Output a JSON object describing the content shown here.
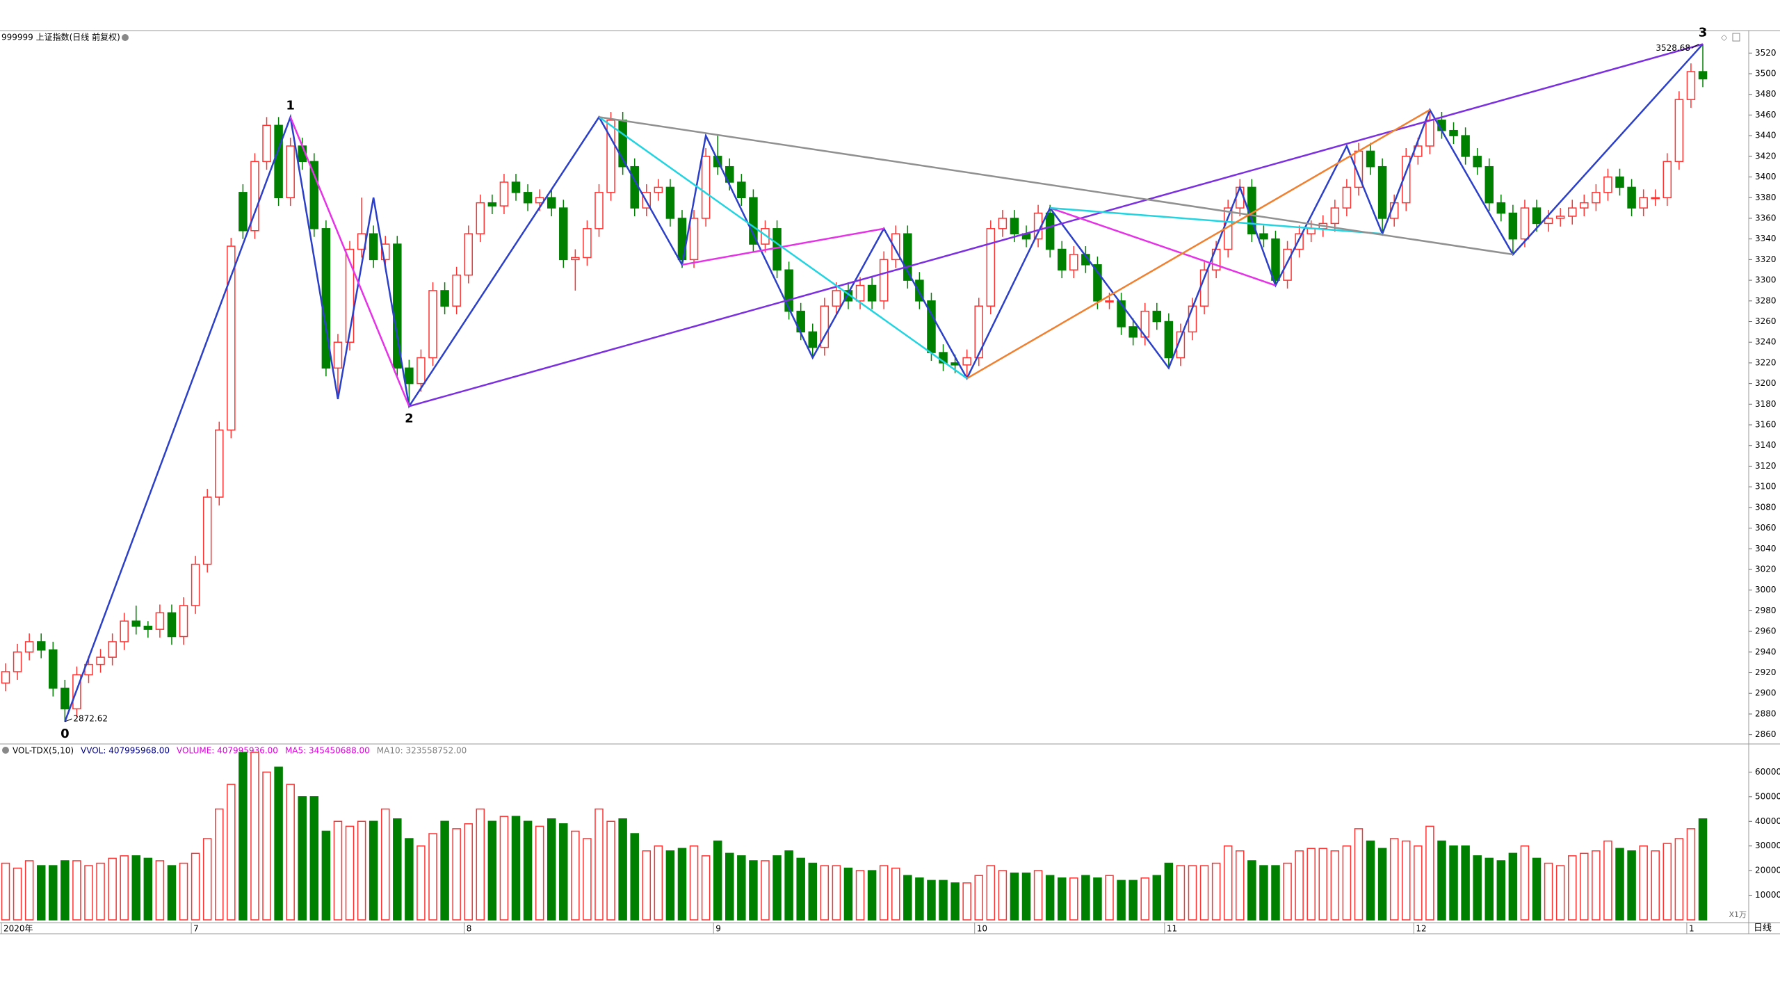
{
  "chart_data": {
    "type": "candlestick",
    "title": "999999 上证指数(日线 前复权)",
    "categories": [
      "2020年",
      null,
      null,
      null,
      null,
      null,
      null,
      null,
      null,
      null,
      null,
      null,
      null,
      null,
      null,
      null,
      "7",
      null,
      null,
      null,
      null,
      null,
      null,
      null,
      null,
      null,
      null,
      null,
      null,
      null,
      null,
      null,
      null,
      null,
      null,
      null,
      null,
      null,
      null,
      "8",
      null,
      null,
      null,
      null,
      null,
      null,
      null,
      null,
      null,
      null,
      null,
      null,
      null,
      null,
      null,
      null,
      null,
      null,
      null,
      null,
      "9",
      null,
      null,
      null,
      null,
      null,
      null,
      null,
      null,
      null,
      null,
      null,
      null,
      null,
      null,
      null,
      null,
      null,
      null,
      null,
      null,
      null,
      "10",
      null,
      null,
      null,
      null,
      null,
      null,
      null,
      null,
      null,
      null,
      null,
      null,
      null,
      null,
      null,
      "11",
      null,
      null,
      null,
      null,
      null,
      null,
      null,
      null,
      null,
      null,
      null,
      null,
      null,
      null,
      null,
      null,
      null,
      null,
      null,
      null,
      "12",
      null,
      null,
      null,
      null,
      null,
      null,
      null,
      null,
      null,
      null,
      null,
      null,
      null,
      null,
      null,
      null,
      null,
      null,
      null,
      null,
      null,
      null,
      "1",
      null
    ],
    "open": [
      2910,
      2921,
      2940,
      2950,
      2942,
      2905,
      2885,
      2918,
      2928,
      2935,
      2950,
      2970,
      2965,
      2962,
      2978,
      2955,
      2985,
      3025,
      3090,
      3155,
      3385,
      3348,
      3415,
      3450,
      3380,
      3430,
      3415,
      3350,
      3215,
      3240,
      3330,
      3345,
      3320,
      3335,
      3215,
      3200,
      3225,
      3290,
      3275,
      3305,
      3345,
      3375,
      3372,
      3395,
      3385,
      3375,
      3380,
      3370,
      3320,
      3322,
      3350,
      3385,
      3455,
      3410,
      3370,
      3385,
      3390,
      3360,
      3320,
      3360,
      3420,
      3410,
      3395,
      3380,
      3335,
      3350,
      3310,
      3270,
      3250,
      3235,
      3275,
      3290,
      3280,
      3295,
      3280,
      3320,
      3345,
      3300,
      3280,
      3230,
      3220,
      3218,
      3225,
      3275,
      3350,
      3360,
      3345,
      3340,
      3365,
      3330,
      3310,
      3325,
      3315,
      3280,
      3280,
      3255,
      3245,
      3270,
      3260,
      3225,
      3250,
      3275,
      3310,
      3330,
      3370,
      3390,
      3345,
      3340,
      3300,
      3330,
      3345,
      3350,
      3355,
      3370,
      3390,
      3425,
      3410,
      3360,
      3375,
      3420,
      3430,
      3455,
      3445,
      3440,
      3420,
      3410,
      3375,
      3365,
      3340,
      3370,
      3355,
      3360,
      3362,
      3370,
      3375,
      3385,
      3400,
      3390,
      3370,
      3380,
      3380,
      3415,
      3475,
      3502
    ],
    "high": [
      2929,
      2948,
      2958,
      2958,
      2950,
      2913,
      2926,
      2936,
      2943,
      2958,
      2978,
      2985,
      2970,
      2986,
      2986,
      2993,
      3033,
      3098,
      3163,
      3341,
      3393,
      3423,
      3458,
      3458,
      3438,
      3438,
      3423,
      3358,
      3248,
      3338,
      3380,
      3353,
      3343,
      3343,
      3223,
      3233,
      3298,
      3298,
      3313,
      3353,
      3383,
      3383,
      3403,
      3403,
      3393,
      3388,
      3388,
      3378,
      3330,
      3358,
      3393,
      3463,
      3463,
      3418,
      3393,
      3398,
      3398,
      3368,
      3368,
      3428,
      3440,
      3418,
      3403,
      3388,
      3358,
      3358,
      3318,
      3278,
      3258,
      3283,
      3298,
      3298,
      3303,
      3303,
      3328,
      3353,
      3353,
      3308,
      3288,
      3238,
      3228,
      3233,
      3283,
      3358,
      3368,
      3368,
      3353,
      3373,
      3373,
      3338,
      3333,
      3333,
      3323,
      3288,
      3288,
      3263,
      3278,
      3278,
      3268,
      3258,
      3283,
      3318,
      3338,
      3378,
      3398,
      3398,
      3353,
      3348,
      3338,
      3353,
      3358,
      3363,
      3378,
      3398,
      3433,
      3433,
      3418,
      3383,
      3428,
      3438,
      3465,
      3463,
      3453,
      3448,
      3428,
      3418,
      3383,
      3373,
      3378,
      3378,
      3368,
      3370,
      3378,
      3383,
      3393,
      3408,
      3408,
      3398,
      3388,
      3388,
      3423,
      3483,
      3510,
      3528.68
    ],
    "low": [
      2902,
      2913,
      2932,
      2934,
      2897,
      2872.62,
      2877,
      2910,
      2920,
      2927,
      2942,
      2957,
      2954,
      2954,
      2947,
      2947,
      2977,
      3017,
      3082,
      3147,
      3340,
      3340,
      3407,
      3372,
      3372,
      3407,
      3342,
      3207,
      3185,
      3232,
      3322,
      3312,
      3312,
      3207,
      3178,
      3192,
      3217,
      3267,
      3267,
      3297,
      3337,
      3364,
      3364,
      3377,
      3367,
      3367,
      3362,
      3312,
      3290,
      3314,
      3342,
      3377,
      3402,
      3362,
      3362,
      3377,
      3352,
      3312,
      3312,
      3352,
      3402,
      3387,
      3372,
      3327,
      3327,
      3302,
      3262,
      3242,
      3225,
      3227,
      3267,
      3272,
      3272,
      3272,
      3272,
      3312,
      3292,
      3272,
      3222,
      3212,
      3210,
      3205,
      3217,
      3267,
      3342,
      3337,
      3332,
      3332,
      3322,
      3302,
      3302,
      3307,
      3272,
      3272,
      3247,
      3237,
      3237,
      3252,
      3215,
      3217,
      3242,
      3267,
      3302,
      3322,
      3362,
      3337,
      3332,
      3295,
      3292,
      3322,
      3337,
      3342,
      3347,
      3362,
      3382,
      3402,
      3345,
      3352,
      3367,
      3412,
      3422,
      3437,
      3432,
      3412,
      3402,
      3367,
      3357,
      3325,
      3332,
      3347,
      3347,
      3352,
      3354,
      3362,
      3367,
      3377,
      3382,
      3362,
      3362,
      3372,
      3372,
      3407,
      3467,
      3487
    ],
    "close": [
      2921,
      2940,
      2950,
      2942,
      2905,
      2885,
      2918,
      2928,
      2935,
      2950,
      2970,
      2965,
      2962,
      2978,
      2955,
      2985,
      3025,
      3090,
      3155,
      3333,
      3348,
      3415,
      3450,
      3380,
      3430,
      3415,
      3350,
      3215,
      3240,
      3330,
      3345,
      3320,
      3335,
      3215,
      3200,
      3225,
      3290,
      3275,
      3305,
      3345,
      3375,
      3372,
      3395,
      3385,
      3375,
      3380,
      3370,
      3320,
      3322,
      3350,
      3385,
      3455,
      3410,
      3370,
      3385,
      3390,
      3360,
      3320,
      3360,
      3420,
      3410,
      3395,
      3380,
      3335,
      3350,
      3310,
      3270,
      3250,
      3235,
      3275,
      3290,
      3280,
      3295,
      3280,
      3320,
      3345,
      3300,
      3280,
      3230,
      3220,
      3218,
      3225,
      3275,
      3350,
      3360,
      3345,
      3340,
      3365,
      3330,
      3310,
      3325,
      3315,
      3280,
      3280,
      3255,
      3245,
      3270,
      3260,
      3225,
      3250,
      3275,
      3310,
      3330,
      3370,
      3390,
      3345,
      3340,
      3300,
      3330,
      3345,
      3350,
      3355,
      3370,
      3390,
      3425,
      3410,
      3360,
      3375,
      3420,
      3430,
      3455,
      3445,
      3440,
      3420,
      3410,
      3375,
      3365,
      3340,
      3370,
      3355,
      3360,
      3362,
      3370,
      3375,
      3385,
      3400,
      3390,
      3370,
      3380,
      3380,
      3415,
      3475,
      3502,
      3495
    ],
    "volume": [
      23000,
      21000,
      24000,
      22000,
      22000,
      24000,
      24000,
      22000,
      23000,
      25000,
      26000,
      26000,
      25000,
      24000,
      22000,
      23000,
      27000,
      33000,
      45000,
      55000,
      68000,
      68000,
      60000,
      62000,
      55000,
      50000,
      50000,
      36000,
      40000,
      38000,
      40000,
      40000,
      45000,
      41000,
      33000,
      30000,
      35000,
      40000,
      37000,
      39000,
      45000,
      40000,
      42000,
      42000,
      40000,
      38000,
      41000,
      39000,
      36000,
      33000,
      45000,
      40000,
      41000,
      35000,
      28000,
      30000,
      28000,
      29000,
      30000,
      26000,
      32000,
      27000,
      26000,
      24000,
      24000,
      26000,
      28000,
      25000,
      23000,
      22000,
      22000,
      21000,
      20000,
      20000,
      22000,
      21000,
      18000,
      17000,
      16000,
      16000,
      15000,
      15000,
      18000,
      22000,
      20000,
      19000,
      19000,
      20000,
      18000,
      17000,
      17000,
      18000,
      17000,
      18000,
      16000,
      16000,
      17000,
      18000,
      23000,
      22000,
      22000,
      22000,
      23000,
      30000,
      28000,
      24000,
      22000,
      22000,
      23000,
      28000,
      29000,
      29000,
      28000,
      30000,
      37000,
      32000,
      29000,
      33000,
      32000,
      30000,
      38000,
      32000,
      30000,
      30000,
      26000,
      25000,
      24000,
      27000,
      30000,
      25000,
      23000,
      22000,
      26000,
      27000,
      28000,
      32000,
      29000,
      28000,
      30000,
      28000,
      31000,
      33000,
      37000,
      41000
    ],
    "up_color": "#ff3232",
    "down_color": "#008000",
    "ylim": [
      2851,
      3533
    ],
    "yticks": [
      2860,
      2880,
      2900,
      2920,
      2940,
      2960,
      2980,
      3000,
      3020,
      3040,
      3060,
      3080,
      3100,
      3120,
      3140,
      3160,
      3180,
      3200,
      3220,
      3240,
      3260,
      3280,
      3300,
      3320,
      3340,
      3360,
      3380,
      3400,
      3420,
      3440,
      3460,
      3480,
      3500,
      3520
    ],
    "volume_ylim": [
      0,
      70000
    ],
    "volume_yticks": [
      10000,
      20000,
      30000,
      40000,
      50000,
      60000
    ],
    "volume_header": [
      {
        "text": "VOL-TDX(5,10)",
        "color": "#000000"
      },
      {
        "text": "VVOL: 407995968.00",
        "color": "#00008b"
      },
      {
        "text": "VOLUME: 407995936.00",
        "color": "#e000e0"
      },
      {
        "text": "MA5: 345450688.00",
        "color": "#e000e0"
      },
      {
        "text": "MA10: 323558752.00",
        "color": "#808080"
      }
    ],
    "volume_unit": "X1万",
    "period": "日线",
    "drawings": [
      {
        "color": "#2b3fc8",
        "points": [
          [
            5,
            2872.62
          ],
          [
            24,
            3458
          ],
          [
            28,
            3185
          ],
          [
            31,
            3380
          ],
          [
            34,
            3178
          ],
          [
            50,
            3458
          ],
          [
            57,
            3315
          ],
          [
            59,
            3440
          ],
          [
            68,
            3225
          ],
          [
            74,
            3350
          ],
          [
            81,
            3205
          ],
          [
            88,
            3370
          ],
          [
            98,
            3215
          ],
          [
            104,
            3390
          ],
          [
            107,
            3295
          ],
          [
            113,
            3430
          ],
          [
            116,
            3345
          ],
          [
            120,
            3465
          ],
          [
            127,
            3325
          ],
          [
            143,
            3528.68
          ]
        ]
      },
      {
        "color": "#7b2fe0",
        "points": [
          [
            34,
            3178
          ],
          [
            143,
            3528.68
          ]
        ]
      },
      {
        "color": "#e632e6",
        "points": [
          [
            24,
            3458
          ],
          [
            34,
            3178
          ]
        ]
      },
      {
        "color": "#e632e6",
        "points": [
          [
            57,
            3315
          ],
          [
            74,
            3350
          ]
        ]
      },
      {
        "color": "#e632e6",
        "points": [
          [
            88,
            3370
          ],
          [
            107,
            3295
          ]
        ]
      },
      {
        "color": "#22d3e0",
        "points": [
          [
            50,
            3458
          ],
          [
            81,
            3205
          ]
        ]
      },
      {
        "color": "#22d3e0",
        "points": [
          [
            88,
            3370
          ],
          [
            116,
            3345
          ]
        ]
      },
      {
        "color": "#909090",
        "points": [
          [
            50,
            3458
          ],
          [
            127,
            3325
          ]
        ]
      },
      {
        "color": "#f08030",
        "points": [
          [
            81,
            3205
          ],
          [
            120,
            3465
          ]
        ]
      }
    ],
    "wave_labels": [
      {
        "text": "0",
        "point": [
          5,
          2872.62
        ],
        "pos": "below"
      },
      {
        "text": "1",
        "point": [
          24,
          3458
        ],
        "pos": "above"
      },
      {
        "text": "2",
        "point": [
          34,
          3178
        ],
        "pos": "below"
      },
      {
        "text": "3",
        "point": [
          143,
          3528.68
        ],
        "pos": "above"
      }
    ]
  }
}
